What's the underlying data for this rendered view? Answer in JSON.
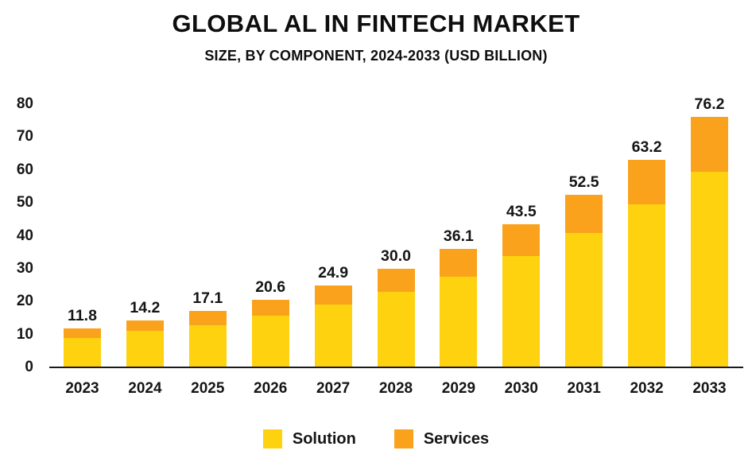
{
  "page": {
    "background": "#FFFFFF"
  },
  "chart_data": {
    "type": "stacked-bar",
    "title": "GLOBAL AL IN FINTECH MARKET",
    "subtitle": "SIZE, BY COMPONENT, 2024-2033 (USD BILLION)",
    "categories": [
      "2023",
      "2024",
      "2025",
      "2026",
      "2027",
      "2028",
      "2029",
      "2030",
      "2031",
      "2032",
      "2033"
    ],
    "series": [
      {
        "name": "Solution",
        "color": "#FFD20F",
        "values": [
          8.9,
          11.1,
          12.7,
          15.8,
          19.0,
          23.0,
          27.6,
          33.9,
          40.8,
          49.6,
          59.4
        ]
      },
      {
        "name": "Services",
        "color": "#FAA21B",
        "values": [
          2.9,
          3.1,
          4.4,
          4.8,
          5.9,
          7.0,
          8.5,
          9.6,
          11.7,
          13.6,
          16.8
        ]
      }
    ],
    "totals_labels": [
      "11.8",
      "14.2",
      "17.1",
      "20.6",
      "24.9",
      "30.0",
      "36.1",
      "43.5",
      "52.5",
      "63.2",
      "76.2"
    ],
    "ylim": [
      0,
      80
    ],
    "yticks": [
      0,
      10,
      20,
      30,
      40,
      50,
      60,
      70,
      80
    ],
    "grid": false,
    "legend_position": "bottom",
    "axis_color": "#1A1A1A",
    "text_color": "#151515"
  }
}
